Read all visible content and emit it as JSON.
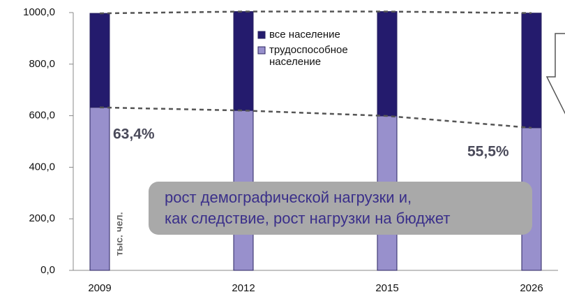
{
  "chart_data": {
    "type": "bar",
    "categories": [
      "2009",
      "2012",
      "2015",
      "2026"
    ],
    "series": [
      {
        "name": "все население",
        "color": "#241b6d",
        "values": [
          997,
          1004,
          1004,
          998
        ]
      },
      {
        "name": "трудоспособное население",
        "color": "#9890cc",
        "values": [
          632,
          620,
          599,
          553
        ]
      }
    ],
    "ylim": [
      0,
      1000
    ],
    "yticks": [
      {
        "value": 0,
        "label": "0,0"
      },
      {
        "value": 200,
        "label": "200,0"
      },
      {
        "value": 400,
        "label": "400,0"
      },
      {
        "value": 600,
        "label": "600,0"
      },
      {
        "value": 800,
        "label": "800,0"
      },
      {
        "value": 1000,
        "label": "1000,0"
      }
    ],
    "y_unit_label": "тыс. чел.",
    "annotations": [
      "63,4%",
      "55,5%"
    ],
    "note": [
      "рост демографической нагрузки и,",
      "как следствие, рост нагрузки на бюджет"
    ]
  }
}
